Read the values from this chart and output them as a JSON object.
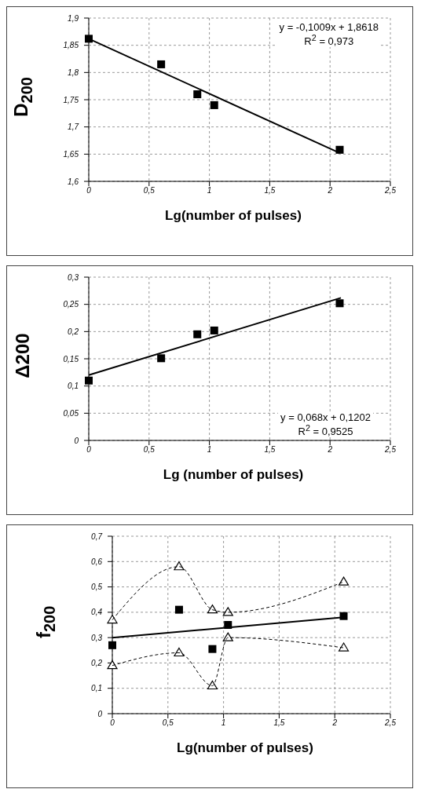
{
  "chart_data": [
    {
      "type": "scatter",
      "xlabel": "Lg(number of pulses)",
      "ylabel": "D$_{200}$",
      "annotations": [
        "y = -0,1009x + 1,8618",
        "R$^{2}$ = 0,973"
      ],
      "grid": true,
      "xlim": [
        0,
        2.5
      ],
      "xticks": [
        0,
        {
          "value": 0.5,
          "label": "0,5"
        },
        1,
        {
          "value": 1.5,
          "label": "1,5"
        },
        2,
        {
          "value": 2.5,
          "label": "2,5"
        }
      ],
      "ylim": [
        1.6,
        1.9
      ],
      "yticks": [
        {
          "value": 1.6,
          "label": "1,6"
        },
        {
          "value": 1.65,
          "label": "1,65"
        },
        {
          "value": 1.7,
          "label": "1,7"
        },
        {
          "value": 1.75,
          "label": "1,75"
        },
        {
          "value": 1.8,
          "label": "1,8"
        },
        {
          "value": 1.85,
          "label": "1,85"
        },
        {
          "value": 1.9,
          "label": "1,9"
        }
      ],
      "series": [
        {
          "color": "#000000",
          "marker": "square",
          "x": [
            0,
            0.6,
            0.9,
            1.04,
            2.08
          ],
          "values": [
            1.862,
            1.815,
            1.76,
            1.74,
            1.658
          ]
        },
        {
          "type": "line",
          "color": "#000000",
          "marker": "none",
          "line_style": "solid",
          "x": [
            0,
            2.08
          ],
          "values": [
            1.862,
            1.652
          ]
        }
      ]
    },
    {
      "type": "scatter",
      "xlabel": "Lg (number of pulses)",
      "ylabel": "Δ200",
      "annotations": [
        "y = 0,068x + 0,1202",
        "R$^{2}$ = 0,9525"
      ],
      "grid": true,
      "xlim": [
        0,
        2.5
      ],
      "xticks": [
        0,
        {
          "value": 0.5,
          "label": "0,5"
        },
        1,
        {
          "value": 1.5,
          "label": "1,5"
        },
        2,
        {
          "value": 2.5,
          "label": "2,5"
        }
      ],
      "ylim": [
        0,
        0.3
      ],
      "yticks": [
        0,
        {
          "value": 0.05,
          "label": "0,05"
        },
        {
          "value": 0.1,
          "label": "0,1"
        },
        {
          "value": 0.15,
          "label": "0,15"
        },
        {
          "value": 0.2,
          "label": "0,2"
        },
        {
          "value": 0.25,
          "label": "0,25"
        },
        {
          "value": 0.3,
          "label": "0,3"
        }
      ],
      "series": [
        {
          "color": "#000000",
          "marker": "square",
          "x": [
            0,
            0.6,
            0.9,
            1.04,
            2.08
          ],
          "values": [
            0.11,
            0.151,
            0.195,
            0.202,
            0.252
          ]
        },
        {
          "type": "line",
          "color": "#000000",
          "marker": "none",
          "line_style": "solid",
          "x": [
            0,
            2.09
          ],
          "values": [
            0.12,
            0.262
          ]
        }
      ]
    },
    {
      "type": "scatter",
      "xlabel": "Lg(number of pulses)",
      "ylabel": "f$_{200}$",
      "grid": true,
      "xlim": [
        0,
        2.5
      ],
      "xticks": [
        0,
        {
          "value": 0.5,
          "label": "0,5"
        },
        1,
        {
          "value": 1.5,
          "label": "1,5"
        },
        2,
        {
          "value": 2.5,
          "label": "2,5"
        }
      ],
      "ylim": [
        0,
        0.7
      ],
      "yticks": [
        0,
        {
          "value": 0.1,
          "label": "0,1"
        },
        {
          "value": 0.2,
          "label": "0,2"
        },
        {
          "value": 0.3,
          "label": "0,3"
        },
        {
          "value": 0.4,
          "label": "0,4"
        },
        {
          "value": 0.5,
          "label": "0,5"
        },
        {
          "value": 0.6,
          "label": "0,6"
        },
        {
          "value": 0.7,
          "label": "0,7"
        }
      ],
      "series": [
        {
          "type": "line",
          "color": "#000000",
          "marker": "triangle",
          "line_style": "dashed",
          "x": [
            0,
            0.6,
            0.9,
            1.04,
            2.08
          ],
          "values": [
            0.37,
            0.58,
            0.41,
            0.4,
            0.52
          ]
        },
        {
          "type": "line",
          "color": "#000000",
          "marker": "triangle",
          "line_style": "dashed",
          "x": [
            0,
            0.6,
            0.9,
            1.04,
            2.08
          ],
          "values": [
            0.19,
            0.24,
            0.11,
            0.3,
            0.26
          ]
        },
        {
          "type": "line",
          "color": "#000000",
          "marker": "none",
          "line_style": "solid",
          "x": [
            0,
            2.08
          ],
          "values": [
            0.3,
            0.38
          ]
        },
        {
          "color": "#000000",
          "marker": "square",
          "x": [
            0,
            0.6,
            0.9,
            1.04,
            2.08
          ],
          "values": [
            0.27,
            0.41,
            0.255,
            0.35,
            0.385
          ]
        }
      ]
    }
  ]
}
